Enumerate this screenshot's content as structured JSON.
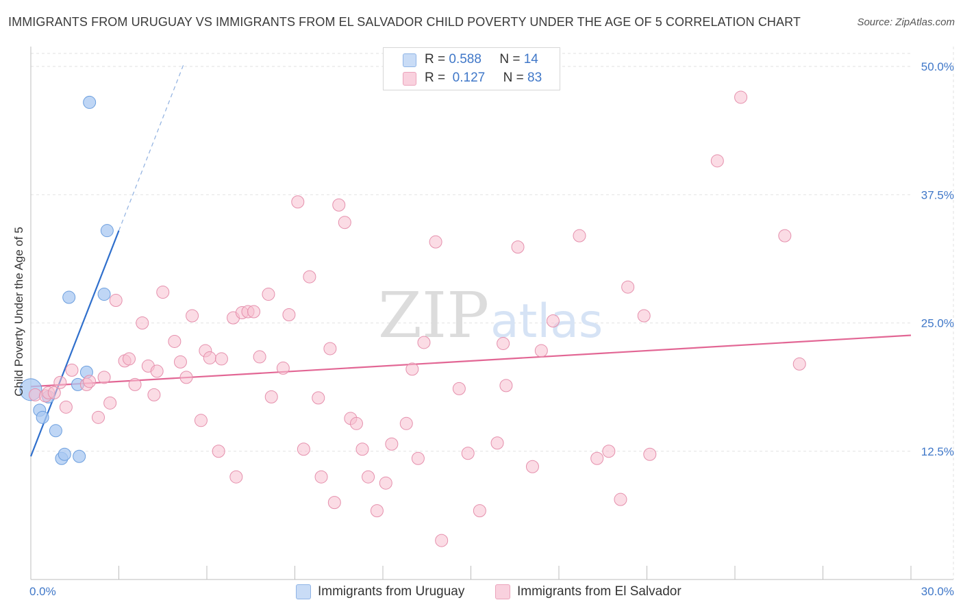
{
  "header": {
    "title": "IMMIGRANTS FROM URUGUAY VS IMMIGRANTS FROM EL SALVADOR CHILD POVERTY UNDER THE AGE OF 5 CORRELATION CHART",
    "source": "Source: ZipAtlas.com"
  },
  "watermark": {
    "zip": "ZIP",
    "atlas": "atlas"
  },
  "legend": {
    "rows": [
      {
        "r_label": "R =",
        "r_value": "0.588",
        "n_label": "N =",
        "n_value": "14",
        "color": "#a9c8f2"
      },
      {
        "r_label": "R =",
        "r_value": "0.127",
        "n_label": "N =",
        "n_value": "83",
        "color": "#f7bfd0"
      }
    ]
  },
  "bottom_legend": {
    "items": [
      {
        "label": "Immigrants from Uruguay",
        "color": "#a9c8f2"
      },
      {
        "label": "Immigrants from El Salvador",
        "color": "#f7bfd0"
      }
    ]
  },
  "chart_data": {
    "type": "scatter",
    "ylabel": "Child Poverty Under the Age of 5",
    "xlim": [
      0,
      30
    ],
    "ylim": [
      0,
      50
    ],
    "x_tick_labels": [
      "0.0%",
      "30.0%"
    ],
    "y_ticks": [
      12.5,
      25.0,
      37.5,
      50.0
    ],
    "y_tick_labels": [
      "12.5%",
      "25.0%",
      "37.5%",
      "50.0%"
    ],
    "grid": true,
    "series": [
      {
        "name": "Immigrants from Uruguay",
        "color": "#a9c8f2",
        "stroke": "#6b9ede",
        "trend_color": "#2f6fcc",
        "trend": {
          "x0": 0.0,
          "y0": 12.0,
          "x1": 3.0,
          "y1": 34.0,
          "x_dash_end": 5.2
        },
        "points": [
          [
            0.0,
            18.5
          ],
          [
            0.3,
            16.5
          ],
          [
            0.4,
            15.8
          ],
          [
            0.6,
            17.8
          ],
          [
            0.85,
            14.5
          ],
          [
            1.05,
            11.8
          ],
          [
            1.15,
            12.2
          ],
          [
            1.3,
            27.5
          ],
          [
            1.6,
            19.0
          ],
          [
            1.65,
            12.0
          ],
          [
            1.9,
            20.2
          ],
          [
            2.0,
            46.5
          ],
          [
            2.5,
            27.8
          ],
          [
            2.6,
            34.0
          ]
        ],
        "sizes": [
          16,
          9,
          9,
          9,
          9,
          9,
          9,
          9,
          9,
          9,
          9,
          9,
          9,
          9
        ]
      },
      {
        "name": "Immigrants from El Salvador",
        "color": "#f7bfd0",
        "stroke": "#e58fac",
        "trend_color": "#e26694",
        "trend": {
          "x0": 0.0,
          "y0": 18.8,
          "x1": 30.0,
          "y1": 23.8
        },
        "points": [
          [
            0.15,
            18.0
          ],
          [
            0.5,
            17.9
          ],
          [
            0.6,
            18.2
          ],
          [
            0.8,
            18.2
          ],
          [
            1.0,
            19.2
          ],
          [
            1.2,
            16.8
          ],
          [
            1.4,
            20.4
          ],
          [
            1.9,
            19.0
          ],
          [
            2.0,
            19.3
          ],
          [
            2.3,
            15.8
          ],
          [
            2.5,
            19.7
          ],
          [
            2.7,
            17.2
          ],
          [
            2.9,
            27.2
          ],
          [
            3.2,
            21.3
          ],
          [
            3.35,
            21.5
          ],
          [
            3.55,
            19.0
          ],
          [
            3.8,
            25.0
          ],
          [
            4.0,
            20.8
          ],
          [
            4.2,
            18.0
          ],
          [
            4.3,
            20.3
          ],
          [
            4.5,
            28.0
          ],
          [
            4.9,
            23.2
          ],
          [
            5.1,
            21.2
          ],
          [
            5.3,
            19.7
          ],
          [
            5.5,
            25.7
          ],
          [
            5.8,
            15.5
          ],
          [
            5.95,
            22.3
          ],
          [
            6.1,
            21.6
          ],
          [
            6.4,
            12.5
          ],
          [
            6.5,
            21.5
          ],
          [
            6.9,
            25.5
          ],
          [
            7.0,
            10.0
          ],
          [
            7.2,
            26.0
          ],
          [
            7.4,
            26.1
          ],
          [
            7.6,
            26.1
          ],
          [
            7.8,
            21.7
          ],
          [
            8.1,
            27.8
          ],
          [
            8.2,
            17.8
          ],
          [
            8.6,
            20.6
          ],
          [
            8.8,
            25.8
          ],
          [
            9.1,
            36.8
          ],
          [
            9.3,
            12.7
          ],
          [
            9.5,
            29.5
          ],
          [
            9.8,
            17.7
          ],
          [
            9.9,
            10.0
          ],
          [
            10.2,
            22.5
          ],
          [
            10.35,
            7.5
          ],
          [
            10.5,
            36.5
          ],
          [
            10.7,
            34.8
          ],
          [
            10.9,
            15.7
          ],
          [
            11.1,
            15.2
          ],
          [
            11.3,
            12.7
          ],
          [
            11.5,
            10.0
          ],
          [
            11.8,
            6.7
          ],
          [
            12.1,
            9.4
          ],
          [
            12.3,
            13.2
          ],
          [
            12.8,
            15.2
          ],
          [
            13.0,
            20.5
          ],
          [
            13.2,
            11.8
          ],
          [
            13.4,
            23.1
          ],
          [
            13.8,
            32.9
          ],
          [
            14.0,
            3.8
          ],
          [
            14.6,
            18.6
          ],
          [
            14.9,
            12.3
          ],
          [
            15.3,
            6.7
          ],
          [
            15.9,
            13.3
          ],
          [
            16.1,
            23.0
          ],
          [
            16.2,
            18.9
          ],
          [
            16.6,
            32.4
          ],
          [
            17.1,
            11.0
          ],
          [
            17.4,
            22.3
          ],
          [
            17.8,
            25.2
          ],
          [
            18.7,
            33.5
          ],
          [
            19.3,
            11.8
          ],
          [
            19.7,
            12.5
          ],
          [
            20.1,
            7.8
          ],
          [
            20.35,
            28.5
          ],
          [
            20.9,
            25.7
          ],
          [
            21.1,
            12.2
          ],
          [
            23.4,
            40.8
          ],
          [
            24.2,
            47.0
          ],
          [
            25.7,
            33.5
          ],
          [
            26.2,
            21.0
          ]
        ]
      }
    ]
  }
}
